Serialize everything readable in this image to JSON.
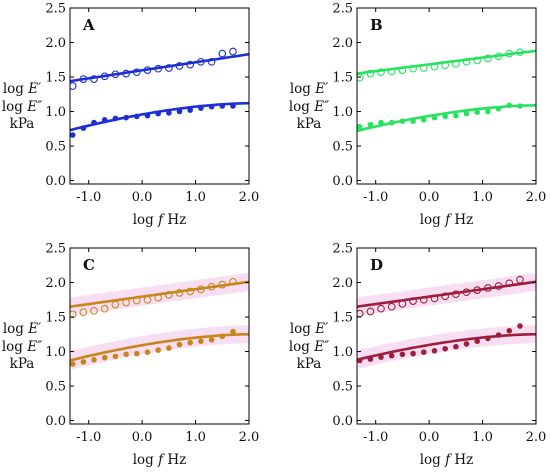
{
  "chart_data": [
    {
      "type": "scatter",
      "panel": "A",
      "color": "#1c2fd6",
      "band_color": "",
      "xlabel": [
        "log ",
        "f",
        "  Hz"
      ],
      "ylabel": [
        "log E′",
        "log E″",
        "kPa"
      ],
      "xlim": [
        -1.35,
        2.0
      ],
      "ylim": [
        -0.05,
        2.5
      ],
      "xticks": [
        "-1.0",
        "0.0",
        "1.0",
        "2.0"
      ],
      "yticks": [
        "0.0",
        "0.5",
        "1.0",
        "1.5",
        "2.0",
        "2.5"
      ],
      "series": [
        {
          "marker": "open",
          "x": [
            -1.3,
            -1.1,
            -0.9,
            -0.7,
            -0.5,
            -0.3,
            -0.1,
            0.1,
            0.3,
            0.5,
            0.7,
            0.9,
            1.1,
            1.3,
            1.5,
            1.7
          ],
          "y": [
            1.37,
            1.47,
            1.47,
            1.51,
            1.54,
            1.55,
            1.57,
            1.6,
            1.62,
            1.63,
            1.66,
            1.68,
            1.72,
            1.72,
            1.84,
            1.87
          ],
          "fit_x": [
            -1.35,
            2.0
          ],
          "fit_y": [
            1.44,
            1.83
          ],
          "fit_curve": "linear"
        },
        {
          "marker": "filled",
          "x": [
            -1.3,
            -1.1,
            -0.9,
            -0.7,
            -0.5,
            -0.3,
            -0.1,
            0.1,
            0.3,
            0.5,
            0.7,
            0.9,
            1.1,
            1.3,
            1.5,
            1.7
          ],
          "y": [
            0.66,
            0.76,
            0.84,
            0.88,
            0.9,
            0.91,
            0.93,
            0.94,
            0.97,
            0.98,
            1.0,
            1.02,
            1.05,
            1.07,
            1.08,
            1.08
          ],
          "fit_start": 0.73,
          "fit_end": 1.12,
          "fit_curve": "concave"
        }
      ]
    },
    {
      "type": "scatter",
      "panel": "B",
      "color": "#26e35f",
      "band_color": "",
      "xlabel": [
        "log ",
        "f",
        "  Hz"
      ],
      "ylabel": [
        "log E′",
        "log E″",
        "kPa"
      ],
      "xlim": [
        -1.35,
        2.0
      ],
      "ylim": [
        -0.05,
        2.5
      ],
      "xticks": [
        "-1.0",
        "0.0",
        "1.0",
        "2.0"
      ],
      "yticks": [
        "0.0",
        "0.5",
        "1.0",
        "1.5",
        "2.0",
        "2.5"
      ],
      "series": [
        {
          "marker": "open",
          "x": [
            -1.3,
            -1.1,
            -0.9,
            -0.7,
            -0.5,
            -0.3,
            -0.1,
            0.1,
            0.3,
            0.5,
            0.7,
            0.9,
            1.1,
            1.3,
            1.5,
            1.7
          ],
          "y": [
            1.49,
            1.55,
            1.57,
            1.58,
            1.6,
            1.62,
            1.63,
            1.65,
            1.67,
            1.69,
            1.72,
            1.74,
            1.77,
            1.8,
            1.84,
            1.86
          ],
          "fit_x": [
            -1.35,
            2.0
          ],
          "fit_y": [
            1.55,
            1.88
          ],
          "fit_curve": "linear"
        },
        {
          "marker": "filled",
          "x": [
            -1.3,
            -1.1,
            -0.9,
            -0.7,
            -0.5,
            -0.3,
            -0.1,
            0.1,
            0.3,
            0.5,
            0.7,
            0.9,
            1.1,
            1.3,
            1.5,
            1.7
          ],
          "y": [
            0.78,
            0.81,
            0.84,
            0.84,
            0.86,
            0.86,
            0.88,
            0.91,
            0.93,
            0.94,
            0.97,
            0.99,
            1.0,
            1.04,
            1.09,
            1.08
          ],
          "fit_start": 0.72,
          "fit_end": 1.09,
          "fit_curve": "concave"
        }
      ]
    },
    {
      "type": "scatter",
      "panel": "C",
      "color": "#c8861a",
      "band_color": "#f7d8f0",
      "xlabel": [
        "log ",
        "f",
        "  Hz"
      ],
      "ylabel": [
        "log E′",
        "log E″",
        "kPa"
      ],
      "xlim": [
        -1.35,
        2.0
      ],
      "ylim": [
        -0.05,
        2.5
      ],
      "xticks": [
        "-1.0",
        "0.0",
        "1.0",
        "2.0"
      ],
      "yticks": [
        "0.0",
        "0.5",
        "1.0",
        "1.5",
        "2.0",
        "2.5"
      ],
      "series": [
        {
          "marker": "open",
          "x": [
            -1.3,
            -1.1,
            -0.9,
            -0.7,
            -0.5,
            -0.3,
            -0.1,
            0.1,
            0.3,
            0.5,
            0.7,
            0.9,
            1.1,
            1.3,
            1.5,
            1.7
          ],
          "y": [
            1.54,
            1.57,
            1.59,
            1.62,
            1.68,
            1.71,
            1.74,
            1.75,
            1.78,
            1.82,
            1.85,
            1.87,
            1.9,
            1.94,
            1.97,
            2.01
          ],
          "fit_x": [
            -1.35,
            2.0
          ],
          "fit_y": [
            1.65,
            2.01
          ],
          "fit_curve": "linear"
        },
        {
          "marker": "filled",
          "x": [
            -1.3,
            -1.1,
            -0.9,
            -0.7,
            -0.5,
            -0.3,
            -0.1,
            0.1,
            0.3,
            0.5,
            0.7,
            0.9,
            1.1,
            1.3,
            1.5,
            1.7
          ],
          "y": [
            0.82,
            0.85,
            0.88,
            0.91,
            0.93,
            0.96,
            0.97,
            0.99,
            1.02,
            1.05,
            1.1,
            1.13,
            1.15,
            1.17,
            1.22,
            1.29
          ],
          "fit_start": 0.87,
          "fit_end": 1.25,
          "fit_curve": "concave"
        }
      ]
    },
    {
      "type": "scatter",
      "panel": "D",
      "color": "#9e1f3c",
      "band_color": "#f7d8f0",
      "xlabel": [
        "log ",
        "f",
        "  Hz"
      ],
      "ylabel": [
        "log E′",
        "log E″",
        "kPa"
      ],
      "xlim": [
        -1.35,
        2.0
      ],
      "ylim": [
        -0.05,
        2.5
      ],
      "xticks": [
        "-1.0",
        "0.0",
        "1.0",
        "2.0"
      ],
      "yticks": [
        "0.0",
        "0.5",
        "1.0",
        "1.5",
        "2.0",
        "2.5"
      ],
      "series": [
        {
          "marker": "open",
          "x": [
            -1.3,
            -1.1,
            -0.9,
            -0.7,
            -0.5,
            -0.3,
            -0.1,
            0.1,
            0.3,
            0.5,
            0.7,
            0.9,
            1.1,
            1.3,
            1.5,
            1.7
          ],
          "y": [
            1.55,
            1.58,
            1.62,
            1.65,
            1.69,
            1.73,
            1.75,
            1.77,
            1.8,
            1.83,
            1.86,
            1.89,
            1.92,
            1.95,
            1.99,
            2.04
          ],
          "fit_x": [
            -1.35,
            2.0
          ],
          "fit_y": [
            1.65,
            2.01
          ],
          "fit_curve": "linear"
        },
        {
          "marker": "filled",
          "x": [
            -1.3,
            -1.1,
            -0.9,
            -0.7,
            -0.5,
            -0.3,
            -0.1,
            0.1,
            0.3,
            0.5,
            0.7,
            0.9,
            1.1,
            1.3,
            1.5,
            1.7
          ],
          "y": [
            0.87,
            0.89,
            0.92,
            0.94,
            0.96,
            0.97,
            0.99,
            1.01,
            1.04,
            1.07,
            1.11,
            1.15,
            1.19,
            1.24,
            1.3,
            1.37
          ],
          "fit_start": 0.88,
          "fit_end": 1.25,
          "fit_curve": "concave"
        }
      ]
    }
  ]
}
